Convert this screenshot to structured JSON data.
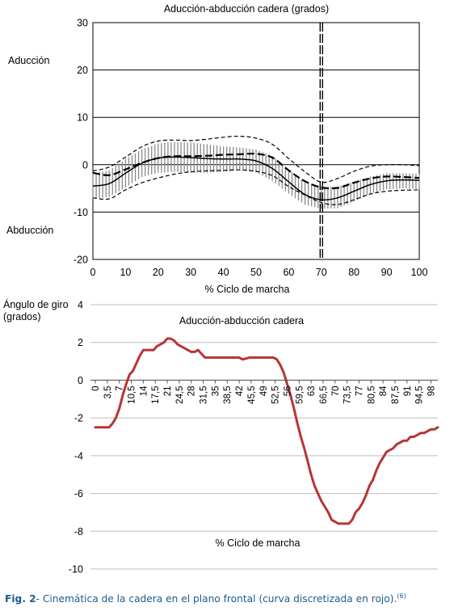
{
  "chart_data": [
    {
      "type": "line",
      "title": "Aducción-abducción cadera (grados)",
      "xlabel": "% Ciclo de marcha",
      "ylabel": "",
      "side_labels": [
        "Aducción",
        "Abducción"
      ],
      "xlim": [
        0,
        100
      ],
      "ylim": [
        -20,
        30
      ],
      "x_ticks": [
        0,
        10,
        20,
        30,
        40,
        50,
        60,
        70,
        80,
        90,
        100
      ],
      "y_ticks": [
        -20,
        -10,
        0,
        10,
        20,
        30
      ],
      "grid": "horizontal",
      "vertical_marker_x": 70,
      "x": [
        0,
        5,
        10,
        15,
        20,
        25,
        30,
        35,
        40,
        45,
        50,
        55,
        60,
        65,
        70,
        75,
        80,
        85,
        90,
        95,
        100
      ],
      "series": [
        {
          "style": "mean",
          "values": [
            -4.5,
            -4,
            -1.8,
            0.3,
            1.4,
            1.6,
            1.5,
            1.3,
            1.2,
            1.2,
            0.8,
            -0.8,
            -3.6,
            -6.3,
            -7.4,
            -7,
            -5.6,
            -4.2,
            -3.4,
            -3.2,
            -3.3
          ]
        },
        {
          "style": "sd-upper",
          "values": [
            -1.8,
            -1.2,
            1.2,
            3.2,
            4.5,
            4.8,
            4.7,
            4.3,
            3.9,
            3.6,
            3.2,
            1.8,
            -1.1,
            -3.6,
            -4.6,
            -4.6,
            -3.6,
            -2.5,
            -1.8,
            -1.8,
            -1.9
          ]
        },
        {
          "style": "sd-lower",
          "values": [
            -7.2,
            -6.8,
            -4.8,
            -2.6,
            -1.7,
            -1.5,
            -1.7,
            -1.7,
            -1.5,
            -1.2,
            -1.6,
            -3.4,
            -6.1,
            -8.5,
            -9.3,
            -9.2,
            -7.8,
            -6.1,
            -5.2,
            -5,
            -5.1
          ]
        },
        {
          "style": "dashed",
          "values": [
            -1.7,
            -2.2,
            -1,
            0.4,
            1.4,
            1.8,
            1.8,
            1.9,
            2.1,
            2.2,
            2.3,
            1.5,
            -1.2,
            -3.5,
            -4.8,
            -4.9,
            -3.8,
            -2.9,
            -2.5,
            -2.6,
            -2.8
          ]
        },
        {
          "style": "dashed-outer-upper",
          "values": [
            -1.3,
            -0.5,
            1.6,
            3.8,
            5,
            5.2,
            5.1,
            5.4,
            5.8,
            6,
            5.6,
            4.3,
            1.3,
            -1.5,
            -3.7,
            -2.9,
            -1.4,
            -0.3,
            0,
            0,
            -0.2
          ]
        },
        {
          "style": "dashed-outer-lower",
          "values": [
            -7,
            -7.2,
            -5.3,
            -3.8,
            -2.8,
            -2,
            -1.5,
            -1.3,
            -1.2,
            -1.1,
            -1.4,
            -2.3,
            -4.6,
            -6.4,
            -8,
            -8.4,
            -7.4,
            -6.2,
            -5.6,
            -5.4,
            -5.3
          ]
        }
      ]
    },
    {
      "type": "line",
      "title": "Aducción-abducción cadera",
      "xlabel": "% Ciclo de marcha",
      "ylabel": "Ángulo de giro (grados)",
      "ylabel_lines": [
        "Ángulo de giro",
        "(grados)"
      ],
      "xlim": [
        0,
        100
      ],
      "ylim": [
        -10,
        4
      ],
      "y_ticks": [
        -10,
        -8,
        -6,
        -4,
        -2,
        0,
        2,
        4
      ],
      "x_tick_labels": [
        "0",
        "3,5",
        "7",
        "10,5",
        "14",
        "17,5",
        "21",
        "24,5",
        "28",
        "31,5",
        "35",
        "38,5",
        "42",
        "45,5",
        "49",
        "52,5",
        "56",
        "59,5",
        "63",
        "66,5",
        "70",
        "73,5",
        "77",
        "80,5",
        "84",
        "87,5",
        "91",
        "94,5",
        "98"
      ],
      "grid": "horizontal",
      "series": [
        {
          "color": "#b83434",
          "x": [
            0,
            4,
            5,
            6,
            7,
            8,
            9,
            10,
            11,
            12,
            13,
            14,
            15,
            16,
            17,
            18,
            19,
            20,
            21,
            22,
            23,
            24,
            25,
            26,
            27,
            28,
            29,
            30,
            31,
            32,
            33,
            34,
            35,
            40,
            42,
            43,
            45,
            50,
            52,
            53,
            54,
            55,
            56,
            57,
            58,
            59,
            60,
            61,
            62,
            63,
            64,
            65,
            66,
            67,
            68,
            69,
            70,
            71,
            72,
            73,
            74,
            75,
            76,
            77,
            78,
            79,
            80,
            81,
            82,
            83,
            84,
            85,
            86,
            87,
            88,
            89,
            90,
            91,
            92,
            93,
            94,
            95,
            96,
            97,
            98,
            99,
            100
          ],
          "y": [
            -2.5,
            -2.5,
            -2.3,
            -2,
            -1.5,
            -0.8,
            -0.2,
            0.3,
            0.5,
            0.9,
            1.3,
            1.6,
            1.6,
            1.6,
            1.6,
            1.8,
            1.9,
            2,
            2.2,
            2.2,
            2.1,
            1.9,
            1.8,
            1.7,
            1.6,
            1.5,
            1.5,
            1.6,
            1.4,
            1.2,
            1.2,
            1.2,
            1.2,
            1.2,
            1.2,
            1.1,
            1.2,
            1.2,
            1.2,
            1.1,
            0.8,
            0.4,
            -0.2,
            -0.8,
            -1.5,
            -2.3,
            -3,
            -3.6,
            -4.3,
            -5,
            -5.6,
            -6,
            -6.4,
            -6.7,
            -7,
            -7.4,
            -7.5,
            -7.6,
            -7.6,
            -7.6,
            -7.6,
            -7.4,
            -7,
            -6.8,
            -6.5,
            -6.1,
            -5.6,
            -5.3,
            -4.8,
            -4.4,
            -4.1,
            -3.8,
            -3.7,
            -3.6,
            -3.4,
            -3.3,
            -3.2,
            -3.2,
            -3,
            -3,
            -2.9,
            -2.8,
            -2.8,
            -2.7,
            -2.6,
            -2.6,
            -2.5
          ]
        }
      ]
    }
  ],
  "caption": {
    "label": "Fig. 2",
    "text": "- Cinemática de la cadera en el plano frontal (curva discretizada en rojo).",
    "ref": "(6)"
  }
}
